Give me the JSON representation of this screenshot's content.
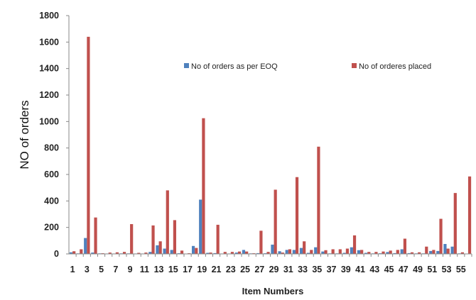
{
  "chart_data": {
    "type": "bar",
    "title": "",
    "xlabel": "Item Numbers",
    "ylabel": "NO of orders",
    "ylim": [
      0,
      1800
    ],
    "yticks": [
      "0",
      "200",
      "400",
      "600",
      "800",
      "1000",
      "1200",
      "1400",
      "1600",
      "1800"
    ],
    "categories": [
      1,
      2,
      3,
      4,
      5,
      6,
      7,
      8,
      9,
      10,
      11,
      12,
      13,
      14,
      15,
      16,
      17,
      18,
      19,
      20,
      21,
      22,
      23,
      24,
      25,
      26,
      27,
      28,
      29,
      30,
      31,
      32,
      33,
      34,
      35,
      36,
      37,
      38,
      39,
      40,
      41,
      42,
      43,
      44,
      45,
      46,
      47,
      48,
      49,
      50,
      51,
      52,
      53,
      54,
      55,
      56
    ],
    "xtick_labels": [
      "1",
      "3",
      "5",
      "7",
      "9",
      "11",
      "13",
      "15",
      "17",
      "19",
      "21",
      "23",
      "25",
      "27",
      "29",
      "31",
      "33",
      "35",
      "37",
      "39",
      "41",
      "43",
      "45",
      "47",
      "49",
      "51",
      "53",
      "55"
    ],
    "legend_position": "top",
    "grid": false,
    "series": [
      {
        "name": "No of orders as per EOQ",
        "color": "#4F81BD",
        "values": [
          12,
          4,
          120,
          10,
          4,
          3,
          3,
          4,
          4,
          3,
          3,
          15,
          65,
          40,
          30,
          5,
          2,
          60,
          410,
          8,
          6,
          3,
          3,
          10,
          30,
          4,
          6,
          5,
          70,
          20,
          30,
          30,
          45,
          8,
          50,
          18,
          4,
          4,
          8,
          50,
          28,
          8,
          4,
          5,
          14,
          6,
          35,
          6,
          4,
          4,
          22,
          22,
          75,
          55,
          4,
          2
        ]
      },
      {
        "name": "No of orderes placed",
        "color": "#C0504D",
        "values": [
          20,
          35,
          1640,
          275,
          5,
          10,
          12,
          15,
          225,
          8,
          10,
          215,
          95,
          480,
          255,
          25,
          5,
          45,
          1025,
          10,
          220,
          15,
          15,
          18,
          18,
          5,
          175,
          15,
          485,
          10,
          35,
          580,
          95,
          30,
          810,
          28,
          35,
          35,
          40,
          140,
          30,
          15,
          15,
          18,
          25,
          30,
          115,
          12,
          12,
          55,
          30,
          265,
          40,
          460,
          12,
          585
        ]
      }
    ]
  }
}
